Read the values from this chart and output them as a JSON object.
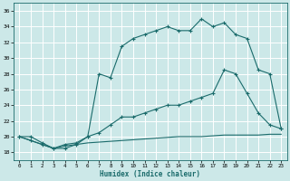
{
  "xlabel": "Humidex (Indice chaleur)",
  "bg_color": "#cce8e8",
  "grid_color": "#b0d8d8",
  "line_color": "#1a6b6b",
  "xlim": [
    -0.5,
    23.5
  ],
  "ylim": [
    17,
    37
  ],
  "yticks": [
    18,
    20,
    22,
    24,
    26,
    28,
    30,
    32,
    34,
    36
  ],
  "xticks": [
    0,
    1,
    2,
    3,
    4,
    5,
    6,
    7,
    8,
    9,
    10,
    11,
    12,
    13,
    14,
    15,
    16,
    17,
    18,
    19,
    20,
    21,
    22,
    23
  ],
  "line1_x": [
    0,
    1,
    2,
    3,
    4,
    5,
    6,
    7,
    8,
    9,
    10,
    11,
    12,
    13,
    14,
    15,
    16,
    17,
    18,
    19,
    20,
    21,
    22,
    23
  ],
  "line1_y": [
    20.0,
    20.0,
    19.2,
    18.5,
    18.5,
    19.0,
    20.0,
    28.0,
    27.5,
    31.5,
    32.5,
    33.0,
    33.5,
    34.0,
    33.5,
    33.5,
    35.0,
    34.0,
    34.5,
    33.0,
    32.5,
    28.5,
    28.0,
    21.0
  ],
  "line2_x": [
    0,
    1,
    2,
    3,
    4,
    5,
    6,
    7,
    8,
    9,
    10,
    11,
    12,
    13,
    14,
    15,
    16,
    17,
    18,
    19,
    20,
    21,
    22,
    23
  ],
  "line2_y": [
    20.0,
    19.5,
    19.0,
    18.5,
    19.0,
    19.2,
    20.0,
    20.5,
    21.5,
    22.5,
    22.5,
    23.0,
    23.5,
    24.0,
    24.0,
    24.5,
    25.0,
    25.5,
    28.5,
    28.0,
    25.5,
    23.0,
    21.5,
    21.0
  ],
  "line3_x": [
    0,
    1,
    2,
    3,
    4,
    5,
    6,
    7,
    8,
    9,
    10,
    11,
    12,
    13,
    14,
    15,
    16,
    17,
    18,
    19,
    20,
    21,
    22,
    23
  ],
  "line3_y": [
    20.0,
    19.5,
    19.0,
    18.5,
    18.8,
    19.0,
    19.2,
    19.3,
    19.4,
    19.5,
    19.6,
    19.7,
    19.8,
    19.9,
    20.0,
    20.0,
    20.0,
    20.1,
    20.2,
    20.2,
    20.2,
    20.2,
    20.3,
    20.3
  ]
}
